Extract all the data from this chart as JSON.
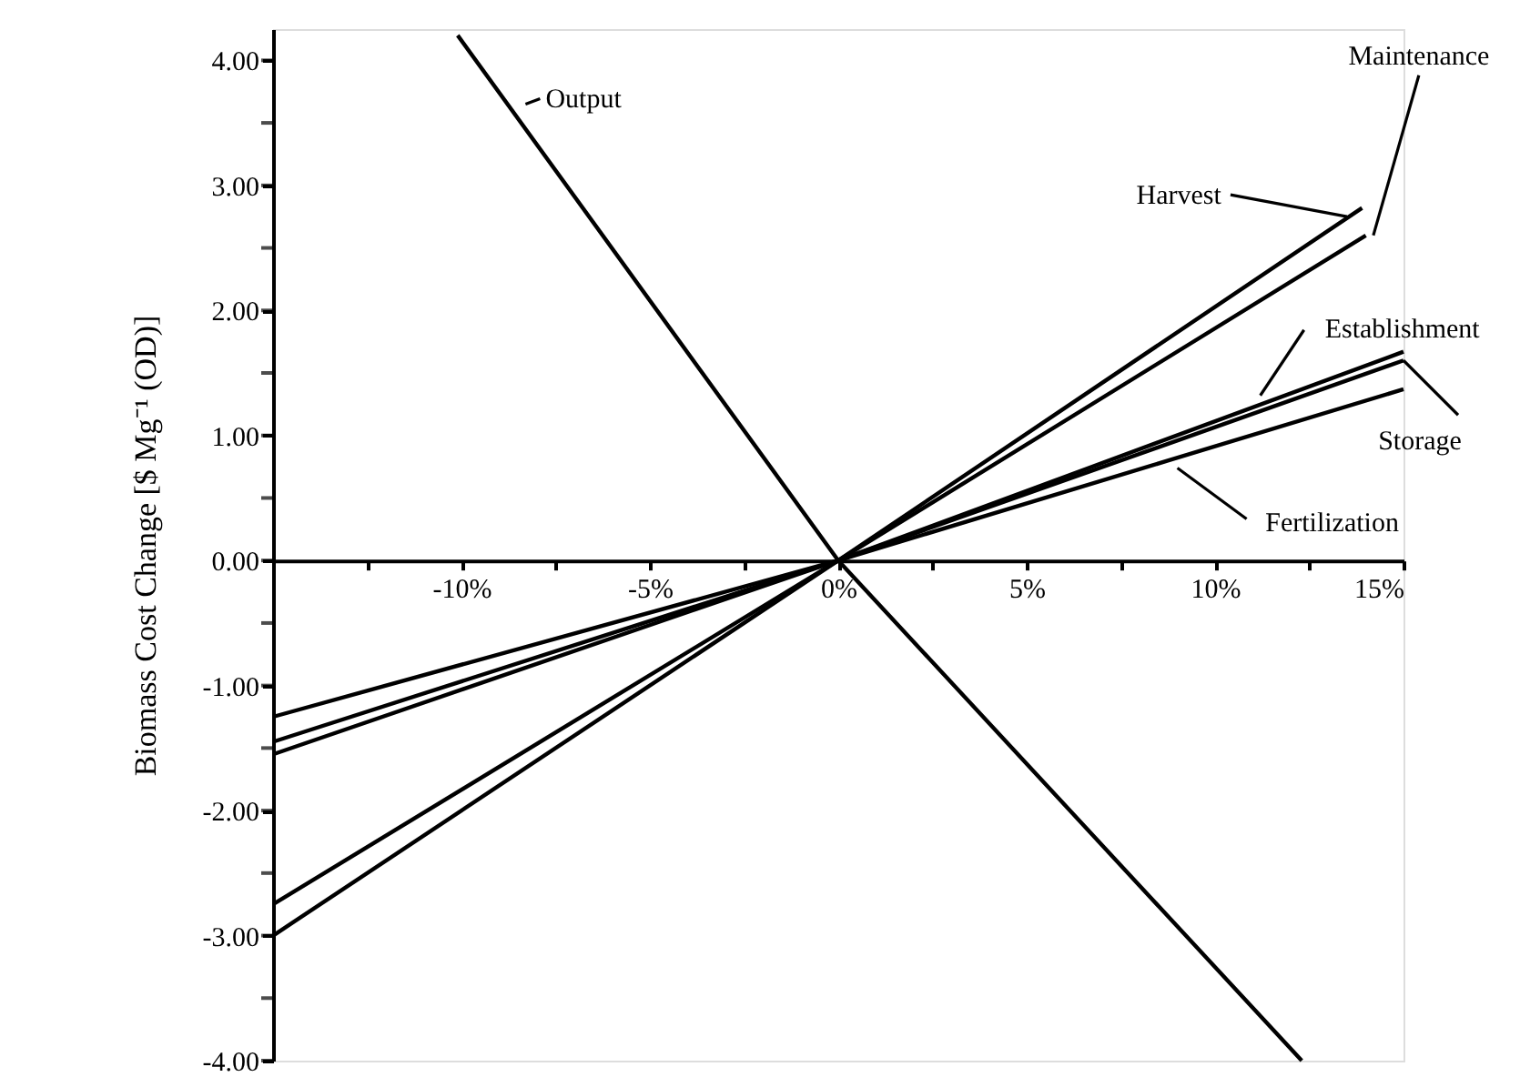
{
  "chart_data": {
    "type": "line",
    "ylabel": "Biomass Cost Change [$ Mg⁻¹ (OD)]",
    "xlim": [
      -15,
      15
    ],
    "ylim": [
      -4,
      4.25
    ],
    "xticks": [
      {
        "value": -15,
        "label": null
      },
      {
        "value": -12.5,
        "label": null
      },
      {
        "value": -10,
        "label": "-10%"
      },
      {
        "value": -7.5,
        "label": null
      },
      {
        "value": -5,
        "label": "-5%"
      },
      {
        "value": -2.5,
        "label": null
      },
      {
        "value": 0,
        "label": "0%"
      },
      {
        "value": 2.5,
        "label": null
      },
      {
        "value": 5,
        "label": "5%"
      },
      {
        "value": 7.5,
        "label": null
      },
      {
        "value": 10,
        "label": "10%"
      },
      {
        "value": 12.5,
        "label": null
      },
      {
        "value": 15,
        "label": "15%"
      }
    ],
    "yticks": [
      {
        "value": -4,
        "label": "-4.00"
      },
      {
        "value": -3.5,
        "label": null
      },
      {
        "value": -3,
        "label": "-3.00"
      },
      {
        "value": -2.5,
        "label": null
      },
      {
        "value": -2,
        "label": "-2.00"
      },
      {
        "value": -1.5,
        "label": null
      },
      {
        "value": -1,
        "label": "-1.00"
      },
      {
        "value": -0.5,
        "label": null
      },
      {
        "value": 0,
        "label": "0.00"
      },
      {
        "value": 0.5,
        "label": null
      },
      {
        "value": 1,
        "label": "1.00"
      },
      {
        "value": 1.5,
        "label": null
      },
      {
        "value": 2,
        "label": "2.00"
      },
      {
        "value": 2.5,
        "label": null
      },
      {
        "value": 3,
        "label": "3.00"
      },
      {
        "value": 3.5,
        "label": null
      },
      {
        "value": 4,
        "label": "4.00"
      }
    ],
    "grid": false,
    "marker": "none",
    "line_style": "solid",
    "series": [
      {
        "name": "Output",
        "color": "#000000",
        "x": [
          -10.1,
          0,
          12.3
        ],
        "values": [
          4.2,
          0,
          -4.0
        ]
      },
      {
        "name": "Harvest",
        "color": "#000000",
        "x": [
          -15,
          0,
          13.9
        ],
        "values": [
          -3.0,
          0,
          2.82
        ]
      },
      {
        "name": "Maintenance",
        "color": "#000000",
        "x": [
          -15,
          0,
          14.0
        ],
        "values": [
          -2.75,
          0,
          2.6
        ]
      },
      {
        "name": "Establishment",
        "color": "#000000",
        "x": [
          -15,
          0,
          15
        ],
        "values": [
          -1.55,
          0,
          1.67
        ]
      },
      {
        "name": "Storage",
        "color": "#000000",
        "x": [
          -15,
          0,
          15
        ],
        "values": [
          -1.45,
          0,
          1.6
        ]
      },
      {
        "name": "Fertilization",
        "color": "#000000",
        "x": [
          -15,
          0,
          15
        ],
        "values": [
          -1.25,
          0,
          1.37
        ]
      }
    ]
  }
}
